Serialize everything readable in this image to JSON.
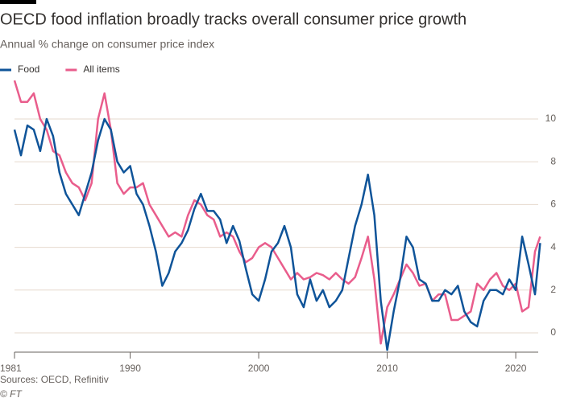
{
  "chart_data": {
    "type": "line",
    "title": "OECD food inflation broadly tracks overall consumer price growth",
    "subtitle": "Annual % change on consumer price index",
    "source": "Sources: OECD, Refinitiv",
    "credit": "© FT",
    "x": [
      1981,
      1981.5,
      1982,
      1982.5,
      1983,
      1983.5,
      1984,
      1984.5,
      1985,
      1985.5,
      1986,
      1986.5,
      1987,
      1987.5,
      1988,
      1988.5,
      1989,
      1989.5,
      1990,
      1990.5,
      1991,
      1991.5,
      1992,
      1992.5,
      1993,
      1993.5,
      1994,
      1994.5,
      1995,
      1995.5,
      1996,
      1996.5,
      1997,
      1997.5,
      1998,
      1998.5,
      1999,
      1999.5,
      2000,
      2000.5,
      2001,
      2001.5,
      2002,
      2002.5,
      2003,
      2003.5,
      2004,
      2004.5,
      2005,
      2005.5,
      2006,
      2006.5,
      2007,
      2007.5,
      2008,
      2008.5,
      2009,
      2009.5,
      2010,
      2010.5,
      2011,
      2011.5,
      2012,
      2012.5,
      2013,
      2013.5,
      2014,
      2014.5,
      2015,
      2015.5,
      2016,
      2016.5,
      2017,
      2017.5,
      2018,
      2018.5,
      2019,
      2019.5,
      2020,
      2020.5,
      2021,
      2021.5,
      2021.9
    ],
    "series": [
      {
        "name": "Food",
        "color": "#0f5499",
        "values": [
          9.5,
          8.3,
          9.7,
          9.5,
          8.5,
          10.0,
          9.2,
          7.5,
          6.5,
          6.0,
          5.5,
          6.5,
          7.5,
          9.0,
          10.0,
          9.5,
          8.0,
          7.5,
          7.8,
          6.5,
          6.0,
          5.0,
          3.8,
          2.2,
          2.8,
          3.8,
          4.2,
          4.8,
          5.8,
          6.5,
          5.7,
          5.7,
          5.3,
          4.2,
          5.0,
          4.3,
          3.0,
          1.8,
          1.5,
          2.5,
          3.8,
          4.2,
          5.0,
          4.0,
          1.8,
          1.2,
          2.5,
          1.5,
          2.0,
          1.2,
          1.5,
          2.0,
          3.5,
          5.0,
          6.0,
          7.4,
          5.5,
          1.5,
          -0.8,
          1.0,
          2.5,
          4.5,
          4.0,
          2.5,
          2.3,
          1.5,
          1.5,
          2.0,
          1.8,
          2.2,
          1.0,
          0.5,
          0.3,
          1.5,
          2.0,
          2.0,
          1.8,
          2.5,
          2.0,
          4.5,
          3.2,
          1.8,
          4.2
        ]
      },
      {
        "name": "All items",
        "color": "#e95d8c",
        "values": [
          11.8,
          10.8,
          10.8,
          11.2,
          10.0,
          9.5,
          8.5,
          8.3,
          7.5,
          7.0,
          6.8,
          6.2,
          7.0,
          10.0,
          11.2,
          9.5,
          7.0,
          6.5,
          6.8,
          6.8,
          7.0,
          6.0,
          5.5,
          5.0,
          4.5,
          4.7,
          4.5,
          5.5,
          6.2,
          6.0,
          5.5,
          5.3,
          4.5,
          4.7,
          4.5,
          3.8,
          3.3,
          3.5,
          4.0,
          4.2,
          4.0,
          3.5,
          3.0,
          2.5,
          2.8,
          2.5,
          2.6,
          2.8,
          2.7,
          2.5,
          2.8,
          2.5,
          2.3,
          2.6,
          3.5,
          4.5,
          2.5,
          -0.5,
          1.2,
          1.8,
          2.5,
          3.2,
          2.8,
          2.2,
          2.3,
          1.5,
          1.8,
          1.8,
          0.6,
          0.6,
          0.8,
          1.0,
          2.3,
          2.0,
          2.5,
          2.8,
          2.2,
          2.0,
          2.3,
          1.0,
          1.2,
          3.8,
          4.5
        ]
      }
    ],
    "xlim": [
      1981,
      2022
    ],
    "xticks": [
      1981,
      1990,
      2000,
      2010,
      2020
    ],
    "ylim": [
      -1,
      12
    ],
    "yticks": [
      0,
      2,
      4,
      6,
      8,
      10
    ],
    "grid": true,
    "legend": "top-left"
  }
}
